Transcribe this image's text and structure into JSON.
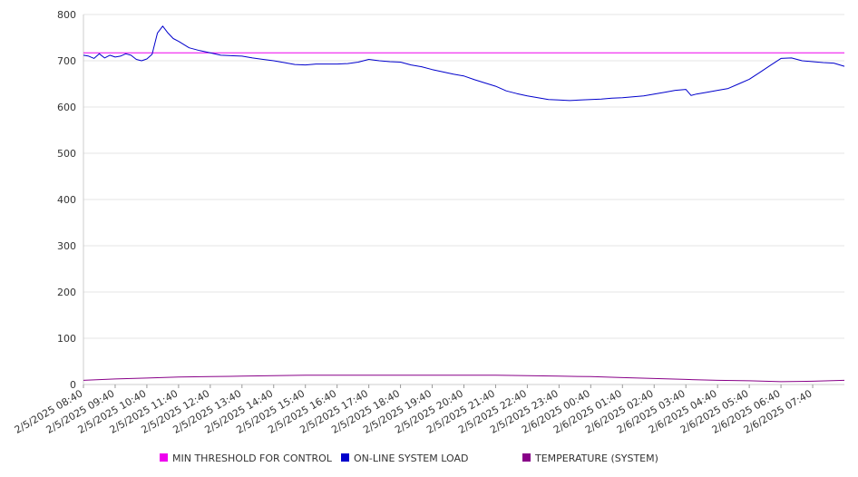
{
  "chart_data": {
    "type": "line",
    "title": "",
    "xlabel": "",
    "ylabel": "",
    "ylim": [
      0,
      800
    ],
    "yticks": [
      "0",
      "100",
      "200",
      "300",
      "400",
      "500",
      "600",
      "700",
      "800"
    ],
    "yticks_values": [
      0,
      100,
      200,
      300,
      400,
      500,
      600,
      700,
      800
    ],
    "xticks": [
      "2/5/2025 08:40",
      "2/5/2025 09:40",
      "2/5/2025 10:40",
      "2/5/2025 11:40",
      "2/5/2025 12:40",
      "2/5/2025 13:40",
      "2/5/2025 14:40",
      "2/5/2025 15:40",
      "2/5/2025 16:40",
      "2/5/2025 17:40",
      "2/5/2025 18:40",
      "2/5/2025 19:40",
      "2/5/2025 20:40",
      "2/5/2025 21:40",
      "2/5/2025 22:40",
      "2/5/2025 23:40",
      "2/6/2025 00:40",
      "2/6/2025 01:40",
      "2/6/2025 02:40",
      "2/6/2025 03:40",
      "2/6/2025 04:40",
      "2/6/2025 05:40",
      "2/6/2025 06:40",
      "2/6/2025 07:40"
    ],
    "grid": true,
    "legend_position": "bottom",
    "x_range": [
      "2/5/2025 08:40",
      "2/6/2025 08:40"
    ],
    "series": [
      {
        "name": "MIN THRESHOLD FOR CONTROL",
        "color": "#ee00ee",
        "x": [
          "2/5/2025 08:40",
          "2/6/2025 08:40"
        ],
        "values": [
          717,
          717
        ]
      },
      {
        "name": "ON-LINE SYSTEM LOAD",
        "color": "#0000cc",
        "x": [
          "2/5/2025 08:40",
          "2/5/2025 08:50",
          "2/5/2025 09:00",
          "2/5/2025 09:10",
          "2/5/2025 09:20",
          "2/5/2025 09:30",
          "2/5/2025 09:40",
          "2/5/2025 09:50",
          "2/5/2025 10:00",
          "2/5/2025 10:10",
          "2/5/2025 10:20",
          "2/5/2025 10:30",
          "2/5/2025 10:40",
          "2/5/2025 10:50",
          "2/5/2025 11:00",
          "2/5/2025 11:10",
          "2/5/2025 11:20",
          "2/5/2025 11:30",
          "2/5/2025 11:40",
          "2/5/2025 12:00",
          "2/5/2025 12:20",
          "2/5/2025 12:40",
          "2/5/2025 13:00",
          "2/5/2025 13:40",
          "2/5/2025 14:00",
          "2/5/2025 14:20",
          "2/5/2025 14:40",
          "2/5/2025 15:00",
          "2/5/2025 15:20",
          "2/5/2025 15:40",
          "2/5/2025 16:00",
          "2/5/2025 16:20",
          "2/5/2025 16:40",
          "2/5/2025 17:00",
          "2/5/2025 17:20",
          "2/5/2025 17:40",
          "2/5/2025 18:00",
          "2/5/2025 18:20",
          "2/5/2025 18:40",
          "2/5/2025 19:00",
          "2/5/2025 19:20",
          "2/5/2025 19:40",
          "2/5/2025 20:00",
          "2/5/2025 20:20",
          "2/5/2025 20:40",
          "2/5/2025 21:00",
          "2/5/2025 21:20",
          "2/5/2025 21:40",
          "2/5/2025 22:00",
          "2/5/2025 22:20",
          "2/5/2025 22:40",
          "2/5/2025 23:00",
          "2/5/2025 23:20",
          "2/5/2025 23:40",
          "2/6/2025 00:00",
          "2/6/2025 00:20",
          "2/6/2025 00:40",
          "2/6/2025 01:00",
          "2/6/2025 01:20",
          "2/6/2025 01:40",
          "2/6/2025 02:00",
          "2/6/2025 02:20",
          "2/6/2025 02:40",
          "2/6/2025 03:00",
          "2/6/2025 03:20",
          "2/6/2025 03:40",
          "2/6/2025 03:50",
          "2/6/2025 04:00",
          "2/6/2025 04:20",
          "2/6/2025 04:40",
          "2/6/2025 05:00",
          "2/6/2025 05:20",
          "2/6/2025 05:40",
          "2/6/2025 06:00",
          "2/6/2025 06:20",
          "2/6/2025 06:40",
          "2/6/2025 07:00",
          "2/6/2025 07:20",
          "2/6/2025 07:40",
          "2/6/2025 08:00",
          "2/6/2025 08:20",
          "2/6/2025 08:40"
        ],
        "values": [
          712,
          710,
          705,
          715,
          706,
          712,
          708,
          710,
          715,
          712,
          703,
          700,
          704,
          714,
          760,
          775,
          760,
          748,
          742,
          728,
          722,
          717,
          712,
          710,
          706,
          703,
          700,
          696,
          692,
          691,
          693,
          693,
          693,
          694,
          697,
          703,
          700,
          698,
          697,
          691,
          687,
          681,
          676,
          671,
          667,
          659,
          652,
          645,
          635,
          629,
          624,
          620,
          616,
          615,
          614,
          615,
          616,
          617,
          619,
          620,
          622,
          624,
          628,
          632,
          636,
          638,
          625,
          628,
          632,
          636,
          640,
          650,
          660,
          675,
          690,
          705,
          706,
          700,
          698,
          696,
          695,
          688
        ]
      },
      {
        "name": "TEMPERATURE (SYSTEM)",
        "color": "#880088",
        "x": [
          "2/5/2025 08:40",
          "2/5/2025 09:40",
          "2/5/2025 10:40",
          "2/5/2025 11:40",
          "2/5/2025 12:40",
          "2/5/2025 13:40",
          "2/5/2025 14:40",
          "2/5/2025 15:40",
          "2/5/2025 16:40",
          "2/5/2025 17:40",
          "2/5/2025 18:40",
          "2/5/2025 19:40",
          "2/5/2025 20:40",
          "2/5/2025 21:40",
          "2/5/2025 22:40",
          "2/5/2025 23:40",
          "2/6/2025 00:40",
          "2/6/2025 01:40",
          "2/6/2025 02:40",
          "2/6/2025 03:40",
          "2/6/2025 04:40",
          "2/6/2025 05:40",
          "2/6/2025 06:40",
          "2/6/2025 07:40",
          "2/6/2025 08:40"
        ],
        "values": [
          9,
          12,
          14,
          16,
          17,
          18,
          19,
          20,
          20,
          20,
          20,
          20,
          20,
          20,
          19,
          18,
          17,
          15,
          13,
          11,
          9,
          8,
          6,
          7,
          9
        ]
      }
    ]
  }
}
